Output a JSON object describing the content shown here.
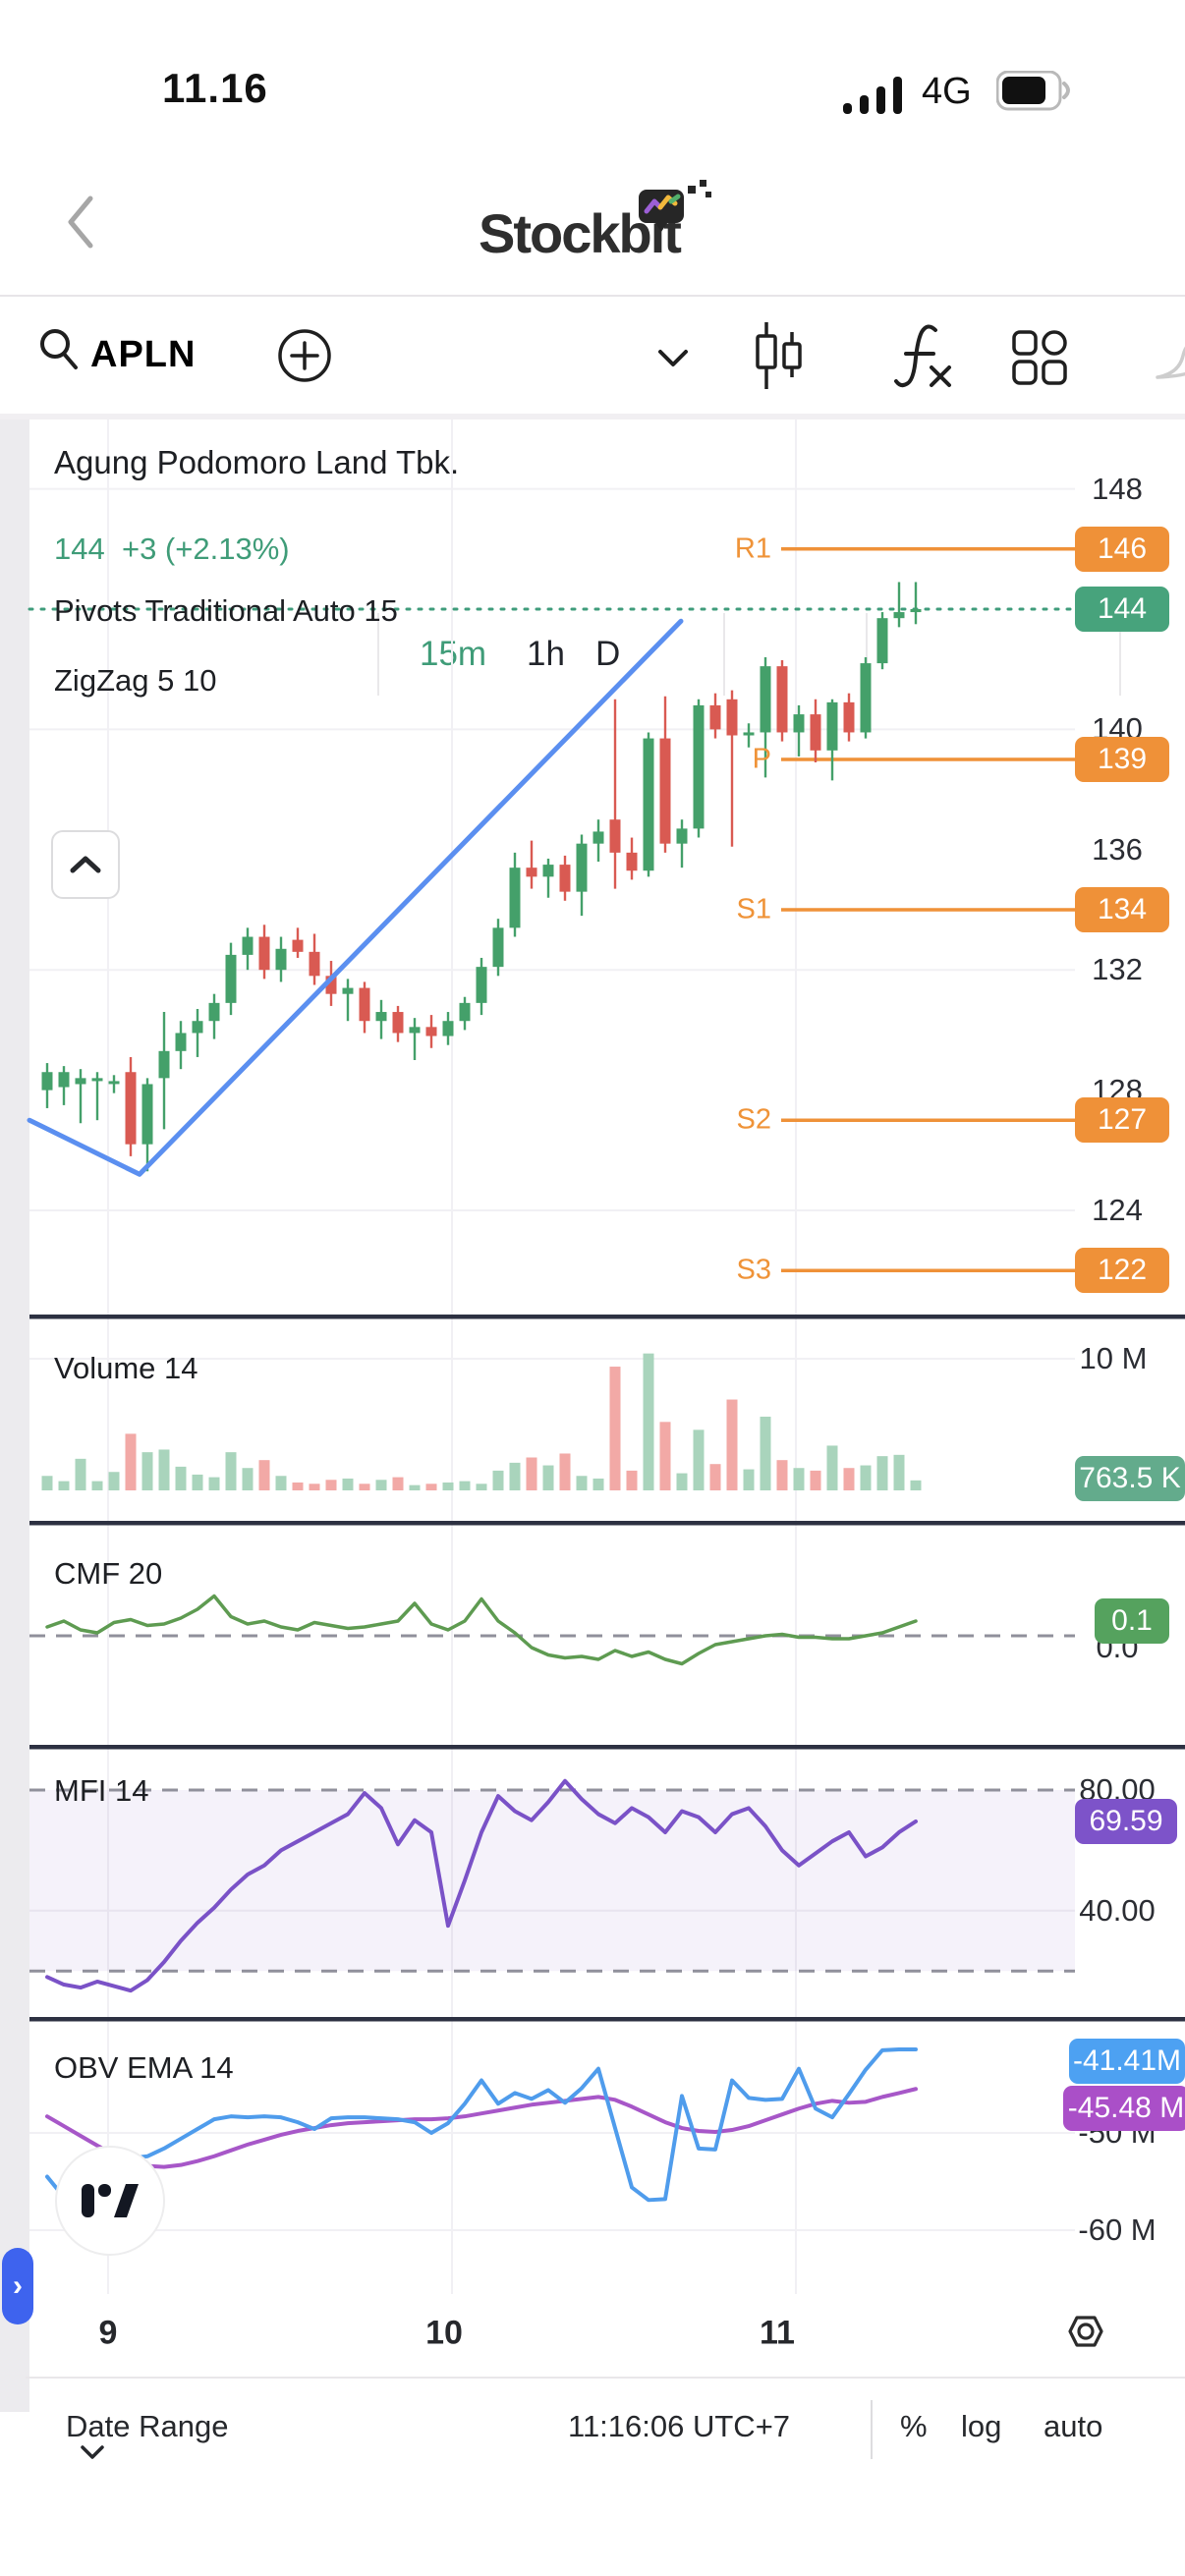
{
  "status_bar": {
    "time": "11.16",
    "network": "4G"
  },
  "header": {
    "app_title": "Stockbit"
  },
  "toolbar": {
    "symbol": "APLN",
    "intervals": {
      "m15": "15m",
      "h1": "1h",
      "d": "D"
    },
    "icons": [
      "search-icon",
      "add-circle-icon",
      "chevron-down-icon",
      "candlestick-icon",
      "fx-icon",
      "grid-icon",
      "bell-icon"
    ]
  },
  "chart_header": {
    "name": "Agung Podomoro Land Tbk.",
    "price": "144",
    "change": "+3 (+2.13%)",
    "indicator_pivots": "Pivots Traditional Auto 15",
    "indicator_zigzag": "ZigZag 5 10"
  },
  "panels": {
    "volume": {
      "title": "Volume 14",
      "axis_label": "10 M",
      "badge": "763.5 K"
    },
    "cmf": {
      "title": "CMF 20",
      "badge": "0.1",
      "hidden_label": "0.0"
    },
    "mfi": {
      "title": "MFI 14",
      "upper_label": "80.00",
      "mid_label": "40.00",
      "badge": "69.59"
    },
    "obv": {
      "title": "OBV EMA 14",
      "badge_obv": "-41.41M",
      "badge_ema": "-45.48 M",
      "label_50": "-50 M",
      "label_60": "-60 M"
    }
  },
  "footer": {
    "date_range": "Date Range",
    "clock": "11:16:06 UTC+7",
    "pct": "%",
    "log": "log",
    "auto": "auto"
  },
  "colors": {
    "up": "#44a06a",
    "down": "#d95a52",
    "vol_up": "#a9d4bc",
    "vol_down": "#f2a9a6",
    "pivot": "#ef9138",
    "price_badge": "#47a37c",
    "vol_badge": "#63ab8c",
    "cmf_badge": "#55a25e",
    "cmf_line": "#5e9b51",
    "mfi_line": "#7a52c7",
    "mfi_badge": "#7d53c9",
    "obv_line": "#4f9cec",
    "obv_badge": "#4da1f2",
    "ema_line": "#a757c8",
    "ema_badge": "#aa4fc8",
    "zigzag": "#5b8ff0",
    "last_price_line": "#3f9c7b",
    "grid": "#f1f0f4",
    "dash": "#90909b",
    "divider": "#2d3142"
  },
  "chart_data": {
    "type": "candlestick",
    "symbol": "APLN",
    "interval": "15m",
    "price_ticks": [
      148,
      140,
      136,
      132,
      128,
      124
    ],
    "price_gridlines": [
      148,
      140,
      132,
      124
    ],
    "price_badges": [
      {
        "text": "146",
        "value": 146,
        "kind": "pivot"
      },
      {
        "text": "144",
        "value": 144,
        "kind": "price"
      },
      {
        "text": "139",
        "value": 139,
        "kind": "pivot"
      },
      {
        "text": "134",
        "value": 134,
        "kind": "pivot"
      },
      {
        "text": "127",
        "value": 127,
        "kind": "pivot"
      },
      {
        "text": "122",
        "value": 122,
        "kind": "pivot"
      }
    ],
    "hidden_price_ticks": [
      140,
      128
    ],
    "pivots": [
      {
        "label": "R1",
        "value": 146
      },
      {
        "label": "P",
        "value": 139
      },
      {
        "label": "S1",
        "value": 134
      },
      {
        "label": "S2",
        "value": 127
      },
      {
        "label": "S3",
        "value": 122
      }
    ],
    "last_price": 144,
    "zigzag_points": [
      {
        "x": 30,
        "price": 127.0
      },
      {
        "x": 142,
        "price": 125.2
      },
      {
        "x": 693,
        "price": 143.6
      }
    ],
    "x_ticks": [
      {
        "label": "9",
        "x": 110
      },
      {
        "label": "10",
        "x": 452
      },
      {
        "label": "11",
        "x": 791
      }
    ],
    "v_gridlines_x": [
      110,
      460,
      810
    ],
    "candles": [
      [
        128.0,
        128.9,
        127.4,
        128.6
      ],
      [
        128.1,
        128.8,
        127.5,
        128.6
      ],
      [
        128.2,
        128.7,
        126.9,
        128.4
      ],
      [
        128.3,
        128.6,
        127.0,
        128.4
      ],
      [
        128.3,
        128.5,
        127.9,
        128.3
      ],
      [
        128.6,
        129.1,
        125.8,
        126.2
      ],
      [
        126.2,
        128.4,
        125.3,
        128.2
      ],
      [
        128.4,
        130.6,
        126.7,
        129.3
      ],
      [
        129.3,
        130.3,
        128.7,
        129.9
      ],
      [
        129.9,
        130.7,
        129.1,
        130.3
      ],
      [
        130.3,
        131.2,
        129.7,
        130.9
      ],
      [
        130.9,
        132.9,
        130.5,
        132.5
      ],
      [
        132.5,
        133.4,
        132.0,
        133.1
      ],
      [
        133.1,
        133.5,
        131.7,
        132.0
      ],
      [
        132.0,
        133.1,
        131.6,
        132.7
      ],
      [
        133.0,
        133.4,
        132.4,
        132.6
      ],
      [
        132.6,
        133.2,
        131.5,
        131.8
      ],
      [
        131.8,
        132.3,
        130.8,
        131.2
      ],
      [
        131.2,
        131.7,
        130.3,
        131.4
      ],
      [
        131.4,
        131.6,
        129.9,
        130.3
      ],
      [
        130.3,
        131.0,
        129.7,
        130.6
      ],
      [
        130.6,
        130.8,
        129.6,
        129.9
      ],
      [
        129.9,
        130.4,
        129.0,
        130.1
      ],
      [
        130.1,
        130.5,
        129.4,
        129.8
      ],
      [
        129.8,
        130.6,
        129.5,
        130.3
      ],
      [
        130.3,
        131.1,
        130.0,
        130.9
      ],
      [
        130.9,
        132.4,
        130.5,
        132.1
      ],
      [
        132.1,
        133.7,
        131.8,
        133.4
      ],
      [
        133.4,
        135.9,
        133.1,
        135.4
      ],
      [
        135.4,
        136.3,
        134.7,
        135.1
      ],
      [
        135.1,
        135.7,
        134.4,
        135.5
      ],
      [
        135.5,
        135.8,
        134.3,
        134.6
      ],
      [
        134.6,
        136.5,
        133.8,
        136.2
      ],
      [
        136.2,
        137.0,
        135.6,
        136.6
      ],
      [
        137.0,
        141.0,
        134.7,
        135.9
      ],
      [
        135.9,
        136.4,
        135.0,
        135.3
      ],
      [
        135.3,
        139.9,
        135.1,
        139.7
      ],
      [
        139.7,
        141.1,
        135.9,
        136.2
      ],
      [
        136.2,
        137.0,
        135.4,
        136.7
      ],
      [
        136.7,
        141.0,
        136.4,
        140.8
      ],
      [
        140.8,
        141.2,
        139.7,
        140.0
      ],
      [
        141.0,
        141.3,
        136.1,
        139.8
      ],
      [
        139.8,
        140.2,
        139.4,
        139.9
      ],
      [
        139.9,
        142.4,
        138.4,
        142.1
      ],
      [
        142.1,
        142.3,
        139.6,
        139.9
      ],
      [
        139.9,
        140.8,
        139.1,
        140.5
      ],
      [
        140.5,
        141.0,
        138.9,
        139.3
      ],
      [
        139.3,
        141.0,
        138.3,
        140.9
      ],
      [
        140.9,
        141.2,
        139.6,
        139.9
      ],
      [
        139.9,
        142.4,
        139.7,
        142.2
      ],
      [
        142.2,
        143.9,
        142.0,
        143.7
      ],
      [
        143.7,
        144.9,
        143.4,
        143.9
      ],
      [
        143.9,
        144.9,
        143.5,
        144.0
      ]
    ],
    "volume_m": [
      1.1,
      0.7,
      2.4,
      0.7,
      1.4,
      4.3,
      2.9,
      3.1,
      1.8,
      1.2,
      1.0,
      2.9,
      1.7,
      2.3,
      1.1,
      0.6,
      0.5,
      0.8,
      0.9,
      0.5,
      0.8,
      1.0,
      0.4,
      0.5,
      0.6,
      0.7,
      0.5,
      1.5,
      2.1,
      2.5,
      1.9,
      2.8,
      1.1,
      0.9,
      9.4,
      1.5,
      10.4,
      5.2,
      1.3,
      4.6,
      2.0,
      6.9,
      1.6,
      5.6,
      2.3,
      1.7,
      1.5,
      3.4,
      1.7,
      1.9,
      2.6,
      2.7,
      0.76
    ],
    "volume_axis": {
      "gridline_value": 10,
      "gridline_label": "10 M",
      "last_value_label": "763.5 K"
    },
    "cmf": [
      0.06,
      0.1,
      0.04,
      0.02,
      0.09,
      0.11,
      0.07,
      0.08,
      0.12,
      0.18,
      0.27,
      0.13,
      0.08,
      0.1,
      0.06,
      0.04,
      0.09,
      0.07,
      0.05,
      0.06,
      0.08,
      0.1,
      0.22,
      0.08,
      0.04,
      0.1,
      0.25,
      0.1,
      0.02,
      -0.08,
      -0.13,
      -0.15,
      -0.14,
      -0.16,
      -0.1,
      -0.14,
      -0.11,
      -0.16,
      -0.19,
      -0.12,
      -0.06,
      -0.04,
      -0.02,
      0.0,
      0.01,
      -0.01,
      -0.01,
      -0.02,
      -0.02,
      0.0,
      0.02,
      0.06,
      0.1
    ],
    "cmf_last": 0.1,
    "mfi": [
      18,
      15.5,
      14.5,
      16.5,
      15,
      13.5,
      17,
      23,
      30,
      36,
      41,
      47,
      52,
      55,
      60,
      63,
      66,
      69,
      72,
      79,
      74,
      62,
      70,
      66,
      35,
      50,
      66,
      78,
      73,
      70,
      76,
      83,
      77,
      72,
      69,
      74,
      71,
      66,
      73,
      71,
      66,
      72,
      74,
      68,
      60,
      55,
      59,
      63,
      66,
      58,
      61,
      66,
      69.59
    ],
    "mfi_last": 69.59,
    "mfi_band": [
      20,
      80
    ],
    "obv_m": [
      -54.5,
      -56.6,
      -55.2,
      -56.0,
      -54.0,
      -52.6,
      -52.4,
      -51.6,
      -50.6,
      -49.6,
      -48.6,
      -48.3,
      -48.4,
      -48.3,
      -48.4,
      -48.9,
      -49.6,
      -48.5,
      -48.4,
      -48.4,
      -48.5,
      -48.6,
      -48.9,
      -50.0,
      -49.0,
      -47.0,
      -44.6,
      -47.0,
      -45.9,
      -46.5,
      -45.6,
      -46.9,
      -45.4,
      -43.4,
      -49.5,
      -55.6,
      -56.9,
      -56.8,
      -46.2,
      -51.6,
      -51.7,
      -44.6,
      -46.4,
      -46.6,
      -46.5,
      -43.4,
      -47.5,
      -48.4,
      -46.0,
      -43.5,
      -41.5,
      -41.41,
      -41.41
    ],
    "obv_ema_m": [
      -48.3,
      -49.3,
      -50.3,
      -51.3,
      -52.2,
      -52.9,
      -53.4,
      -53.5,
      -53.3,
      -52.9,
      -52.4,
      -51.8,
      -51.2,
      -50.7,
      -50.2,
      -49.8,
      -49.5,
      -49.2,
      -49.0,
      -48.9,
      -48.8,
      -48.7,
      -48.6,
      -48.6,
      -48.5,
      -48.3,
      -48.0,
      -47.7,
      -47.4,
      -47.1,
      -46.9,
      -46.7,
      -46.5,
      -46.3,
      -46.6,
      -47.3,
      -48.1,
      -48.9,
      -49.5,
      -49.8,
      -49.9,
      -49.7,
      -49.3,
      -48.7,
      -48.1,
      -47.5,
      -47.0,
      -46.7,
      -46.9,
      -46.8,
      -46.3,
      -45.9,
      -45.48
    ],
    "obv_last": -41.41,
    "obv_ema_last": -45.48,
    "obv_gridlines": [
      -50,
      -60
    ]
  }
}
